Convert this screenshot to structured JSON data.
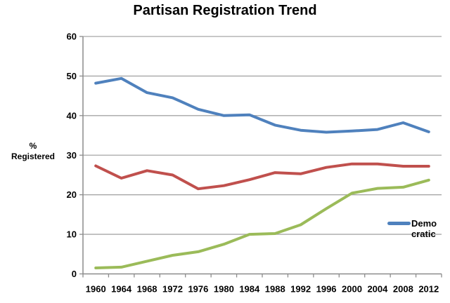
{
  "title": "Partisan Registration Trend",
  "y_axis_label_lines": [
    "%",
    "Registered"
  ],
  "legend": {
    "position": "inside-right",
    "entries": [
      {
        "series": "Democratic",
        "label_lines": [
          "Demo",
          "cratic"
        ],
        "marker_color": "#4F81BD"
      }
    ]
  },
  "colors": {
    "background": "#FFFFFF",
    "gridline": "#A6A6A6",
    "axis": "#8C8C8C",
    "text": "#000000",
    "democratic_blue": "#4F81BD",
    "red_series": "#C0504D",
    "green_series": "#9BBB59"
  },
  "chart_data": {
    "type": "line",
    "title": "Partisan Registration Trend",
    "xlabel": "",
    "ylabel": "% Registered",
    "ylim": [
      0,
      60
    ],
    "ytick_step": 10,
    "grid": true,
    "legend_position": "inside-right",
    "categories": [
      "1960",
      "1964",
      "1968",
      "1972",
      "1976",
      "1980",
      "1984",
      "1988",
      "1992",
      "1996",
      "2000",
      "2004",
      "2008",
      "2012"
    ],
    "series": [
      {
        "name": "Democratic",
        "color": "#4F81BD",
        "values": [
          48.2,
          49.4,
          45.8,
          44.5,
          41.6,
          40.0,
          40.2,
          37.6,
          36.3,
          35.8,
          36.1,
          36.5,
          38.2,
          35.9
        ]
      },
      {
        "name": "",
        "color": "#C0504D",
        "values": [
          27.3,
          24.2,
          26.1,
          25.0,
          21.5,
          22.3,
          23.8,
          25.6,
          25.3,
          26.9,
          27.8,
          27.8,
          27.2,
          27.2
        ]
      },
      {
        "name": "",
        "color": "#9BBB59",
        "values": [
          1.5,
          1.7,
          3.2,
          4.7,
          5.6,
          7.5,
          10.0,
          10.2,
          12.4,
          16.5,
          20.4,
          21.6,
          21.9,
          23.7
        ]
      }
    ]
  }
}
